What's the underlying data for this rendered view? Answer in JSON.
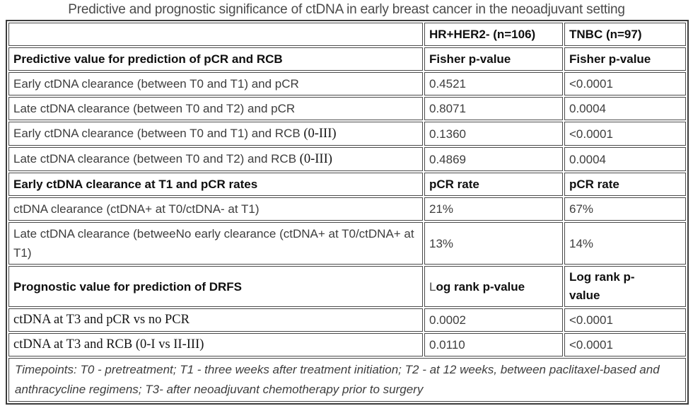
{
  "page_title": "Predictive and prognostic significance of ctDNA in early breast cancer in the neoadjuvant setting",
  "table": {
    "column_headers": {
      "label": "",
      "hr_her2": "HR+HER2- (n=106)",
      "tnbc": "TNBC (n=97)"
    },
    "rows": [
      {
        "label": "Predictive value for prediction of pCR and RCB",
        "hr_her2": "Fisher p-value",
        "tnbc": "Fisher p-value"
      },
      {
        "label": "Early ctDNA clearance (between T0 and T1) and pCR",
        "hr_her2": "0.4521",
        "tnbc": "<0.0001"
      },
      {
        "label": "Late ctDNA clearance (between T0 and T2) and pCR",
        "hr_her2": "0.8071",
        "tnbc": "0.0004"
      },
      {
        "label": "Early ctDNA clearance (between T0 and T1) and RCB",
        "label_suffix": " (0-III)",
        "hr_her2": "0.1360",
        "tnbc": "<0.0001"
      },
      {
        "label": "Late ctDNA clearance (between T0 and T2) and RCB",
        "label_suffix": " (0-III)",
        "hr_her2": "0.4869",
        "tnbc": "0.0004"
      },
      {
        "label": "Early ctDNA clearance at T1 and pCR rates",
        "hr_her2": "pCR rate",
        "tnbc": "pCR rate"
      },
      {
        "label": "ctDNA clearance (ctDNA+ at T0/ctDNA- at T1)",
        "hr_her2": "21%",
        "tnbc": "67%"
      },
      {
        "label": "Late ctDNA clearance (betweeNo early clearance (ctDNA+ at T0/ctDNA+ at T1)",
        "hr_her2": "13%",
        "tnbc": "14%"
      },
      {
        "label": "Prognostic value for prediction of DRFS",
        "hr_her2_prefix": "L",
        "hr_her2_rest": "og rank p-value",
        "tnbc": "Log rank p-value"
      },
      {
        "label": "ctDNA at T3 and pCR vs no PCR",
        "hr_her2": "0.0002",
        "tnbc": "<0.0001"
      },
      {
        "label": "ctDNA at T3 and RCB (0-I vs II-III)",
        "hr_her2": "0.0110",
        "tnbc": "<0.0001"
      }
    ],
    "footnote": "Timepoints: T0 - pretreatment; T1 - three weeks after treatment initiation; T2 - at 12 weeks, between paclitaxel-based and anthracycline regimens; T3- after neoadjuvant chemotherapy prior to surgery"
  },
  "colors": {
    "body_text": "#3d3d3d",
    "bold_text": "#0f0f0f",
    "border": "#4a4a4a",
    "title_text": "#4a4a4a",
    "background": "#ffffff"
  }
}
